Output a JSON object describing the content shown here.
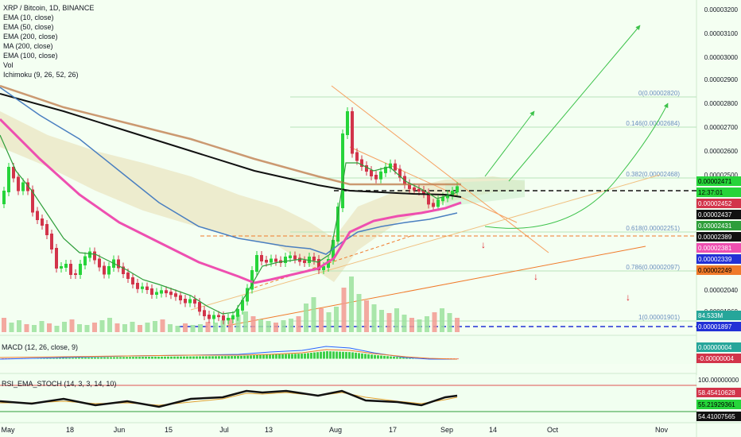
{
  "legend": {
    "title": "XRP / Bitcoin, 1D, BINANCE",
    "items": [
      "EMA (10, close)",
      "EMA (50, close)",
      "EMA (200, close)",
      "MA (200, close)",
      "EMA (100, close)",
      "Vol",
      "Ichimoku (9, 26, 52, 26)"
    ]
  },
  "colors": {
    "background": "#f4fff2",
    "up": "#26d43a",
    "down": "#d2344a",
    "ema10": "#2e9e3a",
    "ema50": "#4a7fc0",
    "ema100": "#ee4fb0",
    "ema200": "#c07f50",
    "ma200": "#111111",
    "fib": "#b9e3b9",
    "cloud": "#e8dfb5",
    "accent_blue": "#2231d6"
  },
  "chart_data": {
    "type": "candlestick",
    "symbol": "XRP / Bitcoin",
    "timeframe": "1D",
    "exchange": "BINANCE",
    "x_ticks": [
      "May",
      "18",
      "Jun",
      "15",
      "Jul",
      "13",
      "Aug",
      "17",
      "Sep",
      "14",
      "Oct",
      "Nov"
    ],
    "y_ticks": [
      "0.00003200",
      "0.00003100",
      "0.00003000",
      "0.00002900",
      "0.00002800",
      "0.00002700",
      "0.00002600",
      "0.00002500",
      "0.00002040",
      "0.00001960"
    ],
    "price_labels": [
      {
        "value": "0.00002471",
        "bg": "#26d43a",
        "fg": "#000000"
      },
      {
        "value": "12:37:01",
        "bg": "#26d43a",
        "fg": "#000000"
      },
      {
        "value": "0.00002452",
        "bg": "#d2344a",
        "fg": "#ffffff"
      },
      {
        "value": "0.00002437",
        "bg": "#111111",
        "fg": "#ffffff"
      },
      {
        "value": "0.00002431",
        "bg": "#2e9e3a",
        "fg": "#ffffff"
      },
      {
        "value": "0.00002389",
        "bg": "#111111",
        "fg": "#ffffff"
      },
      {
        "value": "0.00002381",
        "bg": "#ee4fb0",
        "fg": "#ffffff"
      },
      {
        "value": "0.00002339",
        "bg": "#2231d6",
        "fg": "#ffffff"
      },
      {
        "value": "0.00002249",
        "bg": "#f07a2a",
        "fg": "#000000"
      },
      {
        "value": "84.533M",
        "bg": "#26a69a",
        "fg": "#ffffff"
      },
      {
        "value": "0.00001897",
        "bg": "#2231d6",
        "fg": "#ffffff"
      },
      {
        "value": "0.00000004",
        "bg": "#26a69a",
        "fg": "#ffffff"
      },
      {
        "value": "-0.00000004",
        "bg": "#d2344a",
        "fg": "#ffffff"
      },
      {
        "value": "100.00000000",
        "bg": "#f4fff2",
        "fg": "#131722"
      },
      {
        "value": "58.45410628",
        "bg": "#d2344a",
        "fg": "#ffffff"
      },
      {
        "value": "55.21929361",
        "bg": "#26d43a",
        "fg": "#000000"
      },
      {
        "value": "54.41007565",
        "bg": "#111111",
        "fg": "#ffffff"
      }
    ],
    "fib_levels": [
      {
        "ratio": "0",
        "value": "0.00002820",
        "label": "0(0.00002820)"
      },
      {
        "ratio": "0.146",
        "value": "0.00002684",
        "label": "0.146(0.00002684)"
      },
      {
        "ratio": "0.382",
        "value": "0.00002468",
        "label": "0.382(0.00002468)"
      },
      {
        "ratio": "0.618",
        "value": "0.00002251",
        "label": "0.618(0.00002251)"
      },
      {
        "ratio": "0.786",
        "value": "0.00002097",
        "label": "0.786(0.00002097)"
      },
      {
        "ratio": "1",
        "value": "0.00001901",
        "label": "1(0.00001901)"
      }
    ],
    "price_curve": [
      [
        0,
        255
      ],
      [
        10,
        205
      ],
      [
        20,
        240
      ],
      [
        30,
        225
      ],
      [
        40,
        270
      ],
      [
        50,
        280
      ],
      [
        60,
        300
      ],
      [
        70,
        340
      ],
      [
        80,
        330
      ],
      [
        90,
        350
      ],
      [
        100,
        330
      ],
      [
        110,
        315
      ],
      [
        120,
        330
      ],
      [
        130,
        345
      ],
      [
        140,
        325
      ],
      [
        150,
        340
      ],
      [
        160,
        350
      ],
      [
        170,
        362
      ],
      [
        180,
        360
      ],
      [
        190,
        370
      ],
      [
        200,
        365
      ],
      [
        210,
        368
      ],
      [
        220,
        372
      ],
      [
        230,
        380
      ],
      [
        240,
        375
      ],
      [
        250,
        392
      ],
      [
        260,
        400
      ],
      [
        270,
        395
      ],
      [
        280,
        402
      ],
      [
        290,
        398
      ],
      [
        300,
        385
      ],
      [
        310,
        360
      ],
      [
        320,
        320
      ],
      [
        330,
        330
      ],
      [
        340,
        325
      ],
      [
        350,
        330
      ],
      [
        360,
        320
      ],
      [
        370,
        325
      ],
      [
        380,
        330
      ],
      [
        390,
        320
      ],
      [
        400,
        340
      ],
      [
        410,
        330
      ],
      [
        420,
        290
      ],
      [
        425,
        240
      ],
      [
        430,
        150
      ],
      [
        435,
        140
      ],
      [
        440,
        190
      ],
      [
        450,
        205
      ],
      [
        460,
        215
      ],
      [
        470,
        225
      ],
      [
        480,
        212
      ],
      [
        490,
        205
      ],
      [
        500,
        220
      ],
      [
        510,
        235
      ],
      [
        520,
        238
      ],
      [
        530,
        240
      ],
      [
        540,
        262
      ],
      [
        550,
        250
      ],
      [
        560,
        245
      ],
      [
        570,
        238
      ],
      [
        575,
        232
      ]
    ],
    "ema10": [
      [
        0,
        170
      ],
      [
        20,
        215
      ],
      [
        40,
        240
      ],
      [
        60,
        270
      ],
      [
        80,
        300
      ],
      [
        100,
        318
      ],
      [
        120,
        320
      ],
      [
        140,
        330
      ],
      [
        160,
        340
      ],
      [
        180,
        352
      ],
      [
        200,
        358
      ],
      [
        220,
        365
      ],
      [
        240,
        372
      ],
      [
        260,
        385
      ],
      [
        280,
        395
      ],
      [
        295,
        393
      ],
      [
        310,
        370
      ],
      [
        330,
        335
      ],
      [
        350,
        330
      ],
      [
        380,
        326
      ],
      [
        400,
        330
      ],
      [
        415,
        320
      ],
      [
        425,
        270
      ],
      [
        435,
        205
      ],
      [
        450,
        205
      ],
      [
        470,
        215
      ],
      [
        490,
        210
      ],
      [
        510,
        228
      ],
      [
        530,
        238
      ],
      [
        550,
        250
      ],
      [
        575,
        242
      ]
    ],
    "ema50": [
      [
        0,
        110
      ],
      [
        50,
        145
      ],
      [
        100,
        175
      ],
      [
        150,
        215
      ],
      [
        200,
        255
      ],
      [
        250,
        285
      ],
      [
        300,
        300
      ],
      [
        330,
        305
      ],
      [
        360,
        310
      ],
      [
        390,
        313
      ],
      [
        410,
        320
      ],
      [
        430,
        305
      ],
      [
        450,
        292
      ],
      [
        480,
        285
      ],
      [
        510,
        280
      ],
      [
        540,
        276
      ],
      [
        575,
        268
      ]
    ],
    "ema100": [
      [
        0,
        150
      ],
      [
        50,
        200
      ],
      [
        100,
        245
      ],
      [
        150,
        280
      ],
      [
        200,
        305
      ],
      [
        250,
        330
      ],
      [
        300,
        348
      ],
      [
        320,
        356
      ],
      [
        340,
        352
      ],
      [
        370,
        345
      ],
      [
        400,
        338
      ],
      [
        420,
        325
      ],
      [
        440,
        292
      ],
      [
        470,
        278
      ],
      [
        500,
        272
      ],
      [
        530,
        268
      ],
      [
        560,
        262
      ],
      [
        580,
        255
      ]
    ],
    "ema200": [
      [
        0,
        108
      ],
      [
        80,
        135
      ],
      [
        160,
        155
      ],
      [
        240,
        175
      ],
      [
        320,
        200
      ],
      [
        400,
        222
      ],
      [
        440,
        232
      ],
      [
        480,
        232
      ],
      [
        520,
        232
      ],
      [
        560,
        232
      ],
      [
        580,
        232
      ]
    ],
    "ma200": [
      [
        0,
        118
      ],
      [
        80,
        140
      ],
      [
        160,
        165
      ],
      [
        240,
        190
      ],
      [
        320,
        215
      ],
      [
        400,
        233
      ],
      [
        440,
        240
      ],
      [
        480,
        242
      ],
      [
        520,
        244
      ],
      [
        560,
        245
      ],
      [
        580,
        248
      ]
    ],
    "cloud_top": [
      [
        0,
        140
      ],
      [
        60,
        170
      ],
      [
        120,
        190
      ],
      [
        180,
        205
      ],
      [
        240,
        222
      ],
      [
        300,
        245
      ],
      [
        350,
        260
      ],
      [
        390,
        280
      ],
      [
        420,
        300
      ],
      [
        450,
        260
      ],
      [
        500,
        240
      ],
      [
        560,
        226
      ],
      [
        620,
        222
      ],
      [
        660,
        228
      ]
    ],
    "cloud_bottom": [
      [
        0,
        185
      ],
      [
        60,
        210
      ],
      [
        120,
        240
      ],
      [
        180,
        265
      ],
      [
        240,
        283
      ],
      [
        300,
        298
      ],
      [
        350,
        310
      ],
      [
        390,
        335
      ],
      [
        420,
        355
      ],
      [
        450,
        315
      ],
      [
        500,
        280
      ],
      [
        560,
        255
      ],
      [
        620,
        242
      ],
      [
        660,
        240
      ]
    ],
    "volume": [
      18,
      12,
      15,
      10,
      9,
      14,
      11,
      8,
      13,
      16,
      10,
      9,
      12,
      15,
      18,
      11,
      10,
      13,
      9,
      12,
      14,
      16,
      10,
      8,
      11,
      9,
      10,
      13,
      12,
      15,
      18,
      22,
      26,
      20,
      16,
      14,
      12,
      15,
      17,
      20,
      36,
      44,
      30,
      25,
      32,
      56,
      70,
      48,
      40,
      35,
      28,
      24,
      30,
      22,
      18,
      16,
      20,
      25,
      30,
      24,
      18
    ],
    "macd_line": [
      [
        0,
        452
      ],
      [
        80,
        450
      ],
      [
        160,
        448
      ],
      [
        240,
        447
      ],
      [
        300,
        446
      ],
      [
        340,
        443
      ],
      [
        380,
        441
      ],
      [
        410,
        436
      ],
      [
        440,
        438
      ],
      [
        470,
        444
      ],
      [
        510,
        450
      ],
      [
        540,
        452
      ],
      [
        575,
        452
      ]
    ],
    "macd_signal": [
      [
        0,
        450
      ],
      [
        80,
        449
      ],
      [
        160,
        448
      ],
      [
        240,
        447
      ],
      [
        300,
        447
      ],
      [
        340,
        446
      ],
      [
        380,
        444
      ],
      [
        410,
        440
      ],
      [
        440,
        441
      ],
      [
        470,
        445
      ],
      [
        510,
        449
      ],
      [
        540,
        451
      ],
      [
        575,
        452
      ]
    ],
    "rsi_k": [
      [
        0,
        505
      ],
      [
        40,
        508
      ],
      [
        80,
        502
      ],
      [
        120,
        510
      ],
      [
        160,
        505
      ],
      [
        200,
        512
      ],
      [
        240,
        502
      ],
      [
        280,
        500
      ],
      [
        310,
        492
      ],
      [
        330,
        494
      ],
      [
        360,
        492
      ],
      [
        400,
        498
      ],
      [
        430,
        492
      ],
      [
        460,
        504
      ],
      [
        500,
        506
      ],
      [
        530,
        510
      ],
      [
        560,
        500
      ],
      [
        575,
        498
      ]
    ],
    "rsi_d": [
      [
        0,
        507
      ],
      [
        40,
        507
      ],
      [
        80,
        505
      ],
      [
        120,
        508
      ],
      [
        160,
        507
      ],
      [
        200,
        510
      ],
      [
        240,
        506
      ],
      [
        280,
        502
      ],
      [
        310,
        495
      ],
      [
        330,
        496
      ],
      [
        360,
        494
      ],
      [
        400,
        498
      ],
      [
        430,
        494
      ],
      [
        460,
        500
      ],
      [
        500,
        505
      ],
      [
        530,
        508
      ],
      [
        560,
        503
      ],
      [
        575,
        500
      ]
    ]
  }
}
